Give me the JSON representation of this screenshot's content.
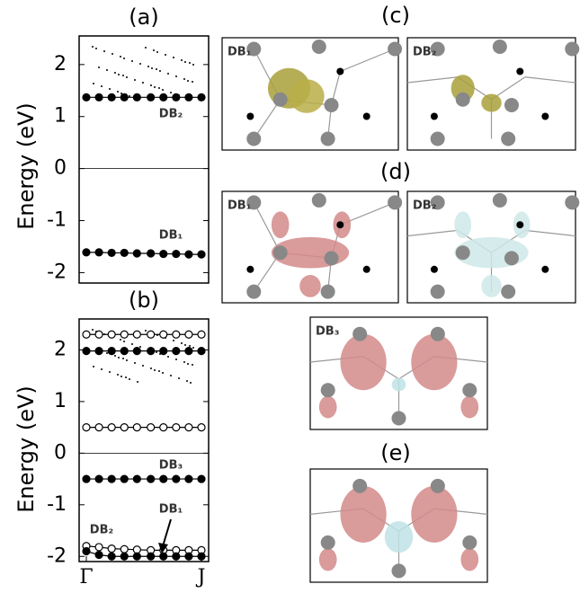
{
  "chart_data": [
    {
      "type": "line",
      "title": "(a)",
      "ylabel": "Energy (eV)",
      "x": [
        0,
        0.11,
        0.22,
        0.33,
        0.44,
        0.56,
        0.67,
        0.78,
        0.89,
        1
      ],
      "xlim": [
        0,
        1
      ],
      "ylim": [
        -2.2,
        2.55
      ],
      "yticks": [
        -2,
        -1,
        0,
        1,
        2
      ],
      "series": [
        {
          "color": "#000000",
          "marker_fill": "#000000",
          "values": [
            1.37,
            1.37,
            1.37,
            1.37,
            1.37,
            1.37,
            1.37,
            1.37,
            1.37,
            1.37
          ]
        },
        {
          "color": "#000000",
          "marker_fill": "#000000",
          "values": [
            -1.61,
            -1.61,
            -1.62,
            -1.62,
            -1.63,
            -1.63,
            -1.64,
            -1.64,
            -1.65,
            -1.65
          ]
        }
      ],
      "annotations": [
        "DB₂",
        "DB₁"
      ]
    },
    {
      "type": "line",
      "title": "(b)",
      "ylabel": "Energy (eV)",
      "x": [
        0,
        0.11,
        0.22,
        0.33,
        0.44,
        0.56,
        0.67,
        0.78,
        0.89,
        1
      ],
      "xlim": [
        0,
        1
      ],
      "xticks": [
        {
          "value": 0,
          "label": "Γ"
        },
        {
          "value": 1,
          "label": "J"
        }
      ],
      "ylim": [
        -2.1,
        2.6
      ],
      "yticks": [
        -2,
        -1,
        0,
        1,
        2
      ],
      "series": [
        {
          "color": "#000000",
          "marker_fill": "#ffffff",
          "values": [
            2.3,
            2.3,
            2.3,
            2.3,
            2.3,
            2.3,
            2.3,
            2.3,
            2.3,
            2.3
          ]
        },
        {
          "color": "#000000",
          "marker_fill": "#000000",
          "values": [
            1.98,
            1.98,
            1.98,
            1.98,
            1.98,
            1.98,
            1.98,
            1.98,
            1.98,
            1.98
          ]
        },
        {
          "color": "#000000",
          "marker_fill": "#ffffff",
          "values": [
            0.5,
            0.5,
            0.5,
            0.5,
            0.5,
            0.5,
            0.5,
            0.5,
            0.5,
            0.5
          ]
        },
        {
          "color": "#000000",
          "marker_fill": "#000000",
          "values": [
            -0.5,
            -0.5,
            -0.5,
            -0.5,
            -0.5,
            -0.5,
            -0.5,
            -0.5,
            -0.5,
            -0.5
          ]
        },
        {
          "color": "#000000",
          "marker_fill": "#ffffff",
          "values": [
            -1.8,
            -1.82,
            -1.85,
            -1.86,
            -1.87,
            -1.88,
            -1.88,
            -1.88,
            -1.88,
            -1.88
          ]
        },
        {
          "color": "#000000",
          "marker_fill": "#000000",
          "values": [
            -1.9,
            -1.97,
            -2.0,
            -2.0,
            -2.0,
            -2.0,
            -2.0,
            -2.0,
            -2.0,
            -2.0
          ]
        }
      ],
      "annotations": [
        "DB₃",
        "DB₁",
        "DB₂"
      ]
    }
  ],
  "panels": [
    {
      "label": "(c)",
      "images": [
        "DB₁",
        "DB₂"
      ]
    },
    {
      "label": "(d)",
      "images": [
        "DB₁",
        "DB₂",
        "DB₃"
      ]
    },
    {
      "label": "(e)"
    }
  ]
}
